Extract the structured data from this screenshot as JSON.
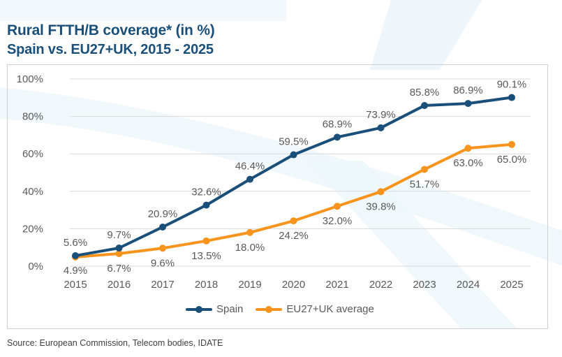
{
  "header": {
    "title": "Rural FTTH/B coverage* (in %)",
    "subtitle": "Spain vs. EU27+UK, 2015 - 2025"
  },
  "source": "Source: European Commission, Telecom bodies, IDATE",
  "colors": {
    "spain": "#1a4f7a",
    "eu": "#f7941d",
    "grid": "#d9d9d9",
    "text": "#595959",
    "title": "#1a4f7a"
  },
  "chart_data": {
    "type": "line",
    "title": "Rural FTTH/B coverage* (in %)",
    "subtitle": "Spain vs. EU27+UK, 2015 - 2025",
    "xlabel": "",
    "ylabel": "",
    "categories": [
      "2015",
      "2016",
      "2017",
      "2018",
      "2019",
      "2020",
      "2021",
      "2022",
      "2023",
      "2024",
      "2025"
    ],
    "ylim": [
      0,
      100
    ],
    "yticks": [
      0,
      20,
      40,
      60,
      80,
      100
    ],
    "ytick_labels": [
      "0%",
      "20%",
      "40%",
      "60%",
      "80%",
      "100%"
    ],
    "grid": true,
    "legend_position": "bottom",
    "series": [
      {
        "name": "Spain",
        "color": "#1a4f7a",
        "values": [
          5.6,
          9.7,
          20.9,
          32.6,
          46.4,
          59.5,
          68.9,
          73.9,
          85.8,
          86.9,
          90.1
        ],
        "labels": [
          "5.6%",
          "9.7%",
          "20.9%",
          "32.6%",
          "46.4%",
          "59.5%",
          "68.9%",
          "73.9%",
          "85.8%",
          "86.9%",
          "90.1%"
        ],
        "label_position": "above"
      },
      {
        "name": "EU27+UK average",
        "color": "#f7941d",
        "values": [
          4.9,
          6.7,
          9.6,
          13.5,
          18.0,
          24.2,
          32.0,
          39.8,
          51.7,
          63.0,
          65.0
        ],
        "labels": [
          "4.9%",
          "6.7%",
          "9.6%",
          "13.5%",
          "18.0%",
          "24.2%",
          "32.0%",
          "39.8%",
          "51.7%",
          "63.0%",
          "65.0%"
        ],
        "label_position": "below"
      }
    ]
  }
}
